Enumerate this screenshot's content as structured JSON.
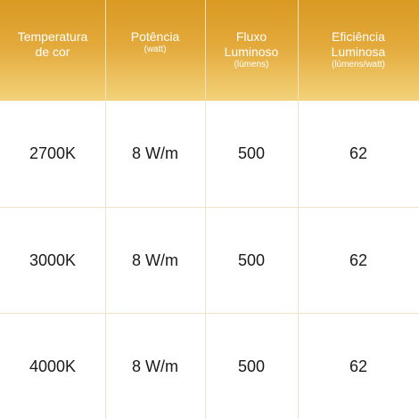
{
  "table": {
    "headers": [
      {
        "title": "Temperatura\nde cor",
        "unit": ""
      },
      {
        "title": "Potência",
        "unit": "(watt)"
      },
      {
        "title": "Fluxo\nLuminoso",
        "unit": "(lúmens)"
      },
      {
        "title": "Eficiência\nLuminosa",
        "unit": "(lúmens/watt)"
      }
    ],
    "rows": [
      [
        "2700K",
        "8 W/m",
        "500",
        "62"
      ],
      [
        "3000K",
        "8 W/m",
        "500",
        "62"
      ],
      [
        "4000K",
        "8 W/m",
        "500",
        "62"
      ]
    ]
  },
  "colors": {
    "header_top": "#d99a22",
    "header_bottom": "#f3d27a",
    "grid_line": "#efe3c6",
    "header_text": "#ffffff",
    "body_text": "#1a1a1a"
  }
}
